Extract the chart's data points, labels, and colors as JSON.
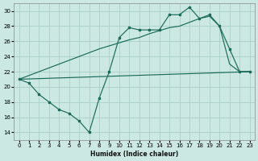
{
  "xlabel": "Humidex (Indice chaleur)",
  "background_color": "#cce8e2",
  "grid_color": "#aad0c8",
  "line_color": "#1a6b5a",
  "xlim": [
    -0.5,
    23.5
  ],
  "ylim": [
    13.0,
    31.0
  ],
  "yticks": [
    14,
    16,
    18,
    20,
    22,
    24,
    26,
    28,
    30
  ],
  "xticks": [
    0,
    1,
    2,
    3,
    4,
    5,
    6,
    7,
    8,
    9,
    10,
    11,
    12,
    13,
    14,
    15,
    16,
    17,
    18,
    19,
    20,
    21,
    22,
    23
  ],
  "line1_x": [
    0,
    1,
    2,
    3,
    4,
    5,
    6,
    7,
    8,
    9,
    10,
    11,
    12,
    13,
    14,
    15,
    16,
    17,
    18,
    19,
    20,
    21,
    22,
    23
  ],
  "line1_y": [
    21.0,
    20.5,
    19.0,
    18.0,
    17.0,
    16.5,
    15.5,
    14.0,
    18.5,
    22.0,
    26.5,
    27.8,
    27.5,
    27.5,
    27.5,
    29.5,
    29.5,
    30.5,
    29.0,
    29.5,
    28.0,
    25.0,
    22.0,
    22.0
  ],
  "line2_x": [
    0,
    23
  ],
  "line2_y": [
    21.0,
    22.0
  ],
  "line3_x": [
    0,
    1,
    2,
    3,
    4,
    5,
    6,
    7,
    8,
    9,
    10,
    11,
    12,
    13,
    14,
    15,
    16,
    17,
    18,
    19,
    20,
    21,
    22,
    23
  ],
  "line3_y": [
    21.0,
    21.5,
    22.0,
    22.5,
    23.0,
    23.5,
    24.0,
    24.5,
    25.0,
    25.4,
    25.8,
    26.2,
    26.5,
    27.0,
    27.4,
    27.8,
    28.0,
    28.5,
    29.0,
    29.3,
    28.0,
    23.0,
    22.0,
    22.0
  ],
  "xlabel_fontsize": 5.5,
  "tick_fontsize": 5.0,
  "linewidth": 0.85,
  "marker_size": 2.0
}
